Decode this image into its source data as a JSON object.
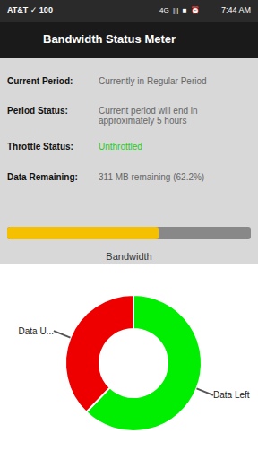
{
  "chart_data": [
    {
      "type": "bar",
      "orientation": "horizontal",
      "title": "Bandwidth Status Meter",
      "annotations": [
        {
          "text": "AT&T  ✓  100",
          "color": "#ffffff"
        },
        {
          "text": "4G  |||  ■  ⏰",
          "color": "#ffffff"
        },
        {
          "text": "7:44 AM",
          "color": "#ffffff"
        },
        {
          "text": "Current Period:",
          "color": "#111111"
        },
        {
          "text": "Currently in Regular Period",
          "color": "#666666"
        },
        {
          "text": "Period Status:",
          "color": "#111111"
        },
        {
          "text": "Current period will end in\napproximately 5 hours",
          "color": "#666666"
        },
        {
          "text": "Throttle Status:",
          "color": "#111111"
        },
        {
          "text": "Unthrottled",
          "color": "#22cc22"
        },
        {
          "text": "Data Remaining:",
          "color": "#111111"
        },
        {
          "text": "311 MB remaining (62.2%)",
          "color": "#666666"
        }
      ],
      "xlabel": "Bandwidth",
      "categories": [
        null
      ],
      "values": [
        0.622
      ],
      "color": "#f5c000",
      "xlim": [
        0,
        1
      ],
      "tick_labels": false
    },
    {
      "type": "pie",
      "categories": [
        "Data Left",
        "Data U..."
      ],
      "values": [
        62.2,
        37.8
      ],
      "colors": [
        "#00ee00",
        "#ee0000"
      ]
    }
  ]
}
